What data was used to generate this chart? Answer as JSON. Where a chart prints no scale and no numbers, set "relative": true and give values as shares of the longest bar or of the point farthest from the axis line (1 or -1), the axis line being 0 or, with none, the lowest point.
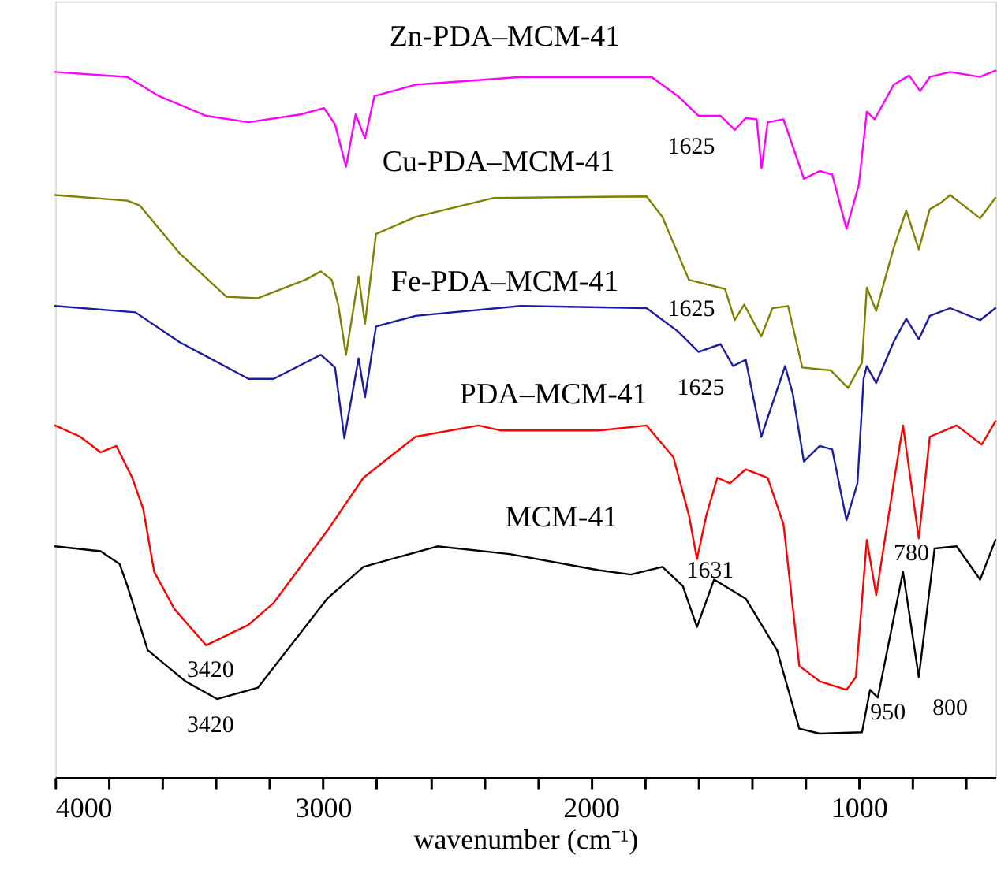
{
  "chart_data": {
    "type": "line",
    "relative": true,
    "xlabel": "wavenumber (cm⁻¹)",
    "xlim": [
      4000,
      490
    ],
    "xticks": [
      4000,
      {
        "value": 3800,
        "label": null
      },
      {
        "value": 3600,
        "label": null
      },
      {
        "value": 3400,
        "label": null
      },
      {
        "value": 3200,
        "label": null
      },
      3000,
      {
        "value": 2800,
        "label": null
      },
      {
        "value": 2600,
        "label": null
      },
      {
        "value": 2400,
        "label": null
      },
      {
        "value": 2200,
        "label": null
      },
      2000,
      {
        "value": 1800,
        "label": null
      },
      {
        "value": 1600,
        "label": null
      },
      {
        "value": 1400,
        "label": null
      },
      {
        "value": 1200,
        "label": null
      },
      1000,
      {
        "value": 800,
        "label": null
      },
      {
        "value": 600,
        "label": null
      }
    ],
    "series": [
      {
        "name": "Zn-PDA–MCM-41",
        "color": "#ff00ff",
        "x": [
          4000,
          3730,
          3612,
          3436,
          3278,
          3084,
          2996,
          2955,
          2914,
          2878,
          2843,
          2808,
          2655,
          2262,
          1774,
          1675,
          1598,
          1516,
          1463,
          1422,
          1381,
          1363,
          1340,
          1281,
          1205,
          1146,
          1099,
          1046,
          1000,
          970,
          941,
          870,
          812,
          771,
          735,
          659,
          548,
          490
        ],
        "values": [
          0.998,
          0.991,
          0.964,
          0.936,
          0.927,
          0.938,
          0.947,
          0.924,
          0.864,
          0.938,
          0.904,
          0.964,
          0.98,
          0.991,
          0.991,
          0.964,
          0.936,
          0.936,
          0.916,
          0.933,
          0.931,
          0.862,
          0.927,
          0.931,
          0.847,
          0.858,
          0.853,
          0.776,
          0.838,
          0.942,
          0.931,
          0.98,
          0.993,
          0.971,
          0.991,
          0.998,
          0.991,
          1.0
        ]
      },
      {
        "name": "Cu-PDA–MCM-41",
        "color": "#808000",
        "x": [
          4000,
          3730,
          3683,
          3536,
          3360,
          3243,
          3066,
          3008,
          2967,
          2943,
          2914,
          2867,
          2843,
          2802,
          2655,
          2362,
          1792,
          1733,
          1634,
          1499,
          1463,
          1428,
          1364,
          1322,
          1264,
          1211,
          1105,
          1040,
          988,
          970,
          935,
          870,
          823,
          776,
          735,
          694,
          659,
          547,
          490
        ],
        "values": [
          0.824,
          0.816,
          0.809,
          0.742,
          0.68,
          0.678,
          0.704,
          0.716,
          0.704,
          0.669,
          0.598,
          0.709,
          0.642,
          0.769,
          0.793,
          0.82,
          0.822,
          0.793,
          0.704,
          0.691,
          0.647,
          0.669,
          0.624,
          0.664,
          0.667,
          0.58,
          0.576,
          0.551,
          0.587,
          0.693,
          0.66,
          0.749,
          0.802,
          0.747,
          0.804,
          0.813,
          0.824,
          0.791,
          0.82
        ]
      },
      {
        "name": "Fe-PDA–MCM-41",
        "color": "#1c1ca0",
        "x": [
          4000,
          3700,
          3536,
          3278,
          3184,
          3008,
          2955,
          2920,
          2867,
          2843,
          2802,
          2655,
          2262,
          1792,
          1675,
          1598,
          1516,
          1469,
          1422,
          1364,
          1275,
          1246,
          1205,
          1146,
          1099,
          1046,
          1005,
          982,
          970,
          935,
          870,
          823,
          776,
          735,
          659,
          547,
          490
        ],
        "values": [
          0.667,
          0.658,
          0.616,
          0.564,
          0.564,
          0.598,
          0.58,
          0.48,
          0.593,
          0.538,
          0.638,
          0.653,
          0.667,
          0.664,
          0.631,
          0.602,
          0.613,
          0.582,
          0.591,
          0.482,
          0.582,
          0.542,
          0.447,
          0.469,
          0.464,
          0.364,
          0.416,
          0.564,
          0.582,
          0.558,
          0.616,
          0.649,
          0.62,
          0.653,
          0.664,
          0.647,
          0.664
        ]
      },
      {
        "name": "PDA–MCM-41",
        "color": "#ff0000",
        "x": [
          4000,
          3906,
          3830,
          3771,
          3712,
          3671,
          3630,
          3554,
          3436,
          3278,
          3184,
          2984,
          2849,
          2655,
          2420,
          2338,
          1968,
          1792,
          1692,
          1634,
          1604,
          1569,
          1528,
          1481,
          1422,
          1340,
          1281,
          1222,
          1146,
          1046,
          1011,
          970,
          935,
          870,
          835,
          776,
          735,
          635,
          541,
          490
        ],
        "values": [
          0.498,
          0.482,
          0.46,
          0.469,
          0.424,
          0.38,
          0.291,
          0.238,
          0.187,
          0.216,
          0.247,
          0.349,
          0.424,
          0.482,
          0.498,
          0.491,
          0.491,
          0.498,
          0.453,
          0.371,
          0.309,
          0.371,
          0.424,
          0.416,
          0.436,
          0.424,
          0.358,
          0.158,
          0.136,
          0.124,
          0.142,
          0.336,
          0.258,
          0.416,
          0.498,
          0.338,
          0.482,
          0.498,
          0.471,
          0.504
        ]
      },
      {
        "name": "MCM-41",
        "color": "#000000",
        "x": [
          4000,
          3830,
          3759,
          3730,
          3654,
          3513,
          3395,
          3243,
          2984,
          2849,
          2573,
          2303,
          1968,
          1851,
          1733,
          1657,
          1604,
          1540,
          1422,
          1305,
          1222,
          1146,
          988,
          958,
          929,
          835,
          776,
          717,
          635,
          547,
          490
        ],
        "values": [
          0.327,
          0.32,
          0.302,
          0.271,
          0.18,
          0.136,
          0.111,
          0.127,
          0.253,
          0.298,
          0.327,
          0.316,
          0.293,
          0.287,
          0.298,
          0.271,
          0.213,
          0.28,
          0.253,
          0.18,
          0.069,
          0.062,
          0.064,
          0.124,
          0.113,
          0.291,
          0.142,
          0.324,
          0.327,
          0.28,
          0.336
        ]
      }
    ],
    "annotations": [
      {
        "text": "3420",
        "x": 3420,
        "y": 0.187
      },
      {
        "text": "3420",
        "x": 3420,
        "y": 0.111
      },
      {
        "text": "1625",
        "x": 1625,
        "y": 0.936
      },
      {
        "text": "1625",
        "x": 1625,
        "y": 0.704
      },
      {
        "text": "1625",
        "x": 1625,
        "y": 0.61
      },
      {
        "text": "1631",
        "x": 1631,
        "y": 0.309
      },
      {
        "text": "950",
        "x": 950,
        "y": 0.124
      },
      {
        "text": "800",
        "x": 800,
        "y": 0.142
      },
      {
        "text": "780",
        "x": 780,
        "y": 0.338
      }
    ]
  }
}
